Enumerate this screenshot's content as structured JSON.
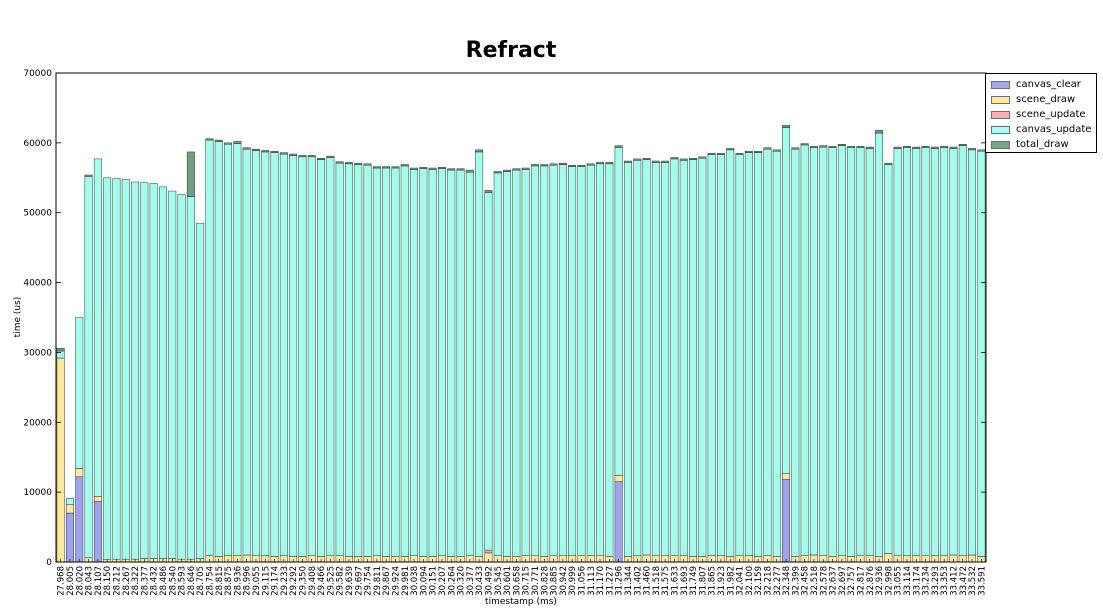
{
  "chart_data": {
    "type": "bar",
    "stacked": true,
    "title": "Refract",
    "xlabel": "timestamp (ms)",
    "ylabel": "time (us)",
    "ylim": [
      0,
      70000
    ],
    "yticks": [
      "0",
      "10000",
      "20000",
      "30000",
      "40000",
      "50000",
      "60000",
      "70000"
    ],
    "grid": false,
    "legend_position": "top-right",
    "categories": [
      "27.968",
      "28.005",
      "28.020",
      "28.043",
      "28.107",
      "28.150",
      "28.212",
      "28.267",
      "28.322",
      "28.377",
      "28.432",
      "28.486",
      "28.540",
      "28.593",
      "28.646",
      "28.705",
      "28.754",
      "28.815",
      "28.875",
      "28.936",
      "28.996",
      "29.055",
      "29.115",
      "29.174",
      "29.233",
      "29.292",
      "29.350",
      "29.408",
      "29.466",
      "29.525",
      "29.582",
      "29.639",
      "29.697",
      "29.754",
      "29.811",
      "29.867",
      "29.924",
      "29.981",
      "30.038",
      "30.094",
      "30.151",
      "30.207",
      "30.264",
      "30.320",
      "30.377",
      "30.433",
      "30.492",
      "30.545",
      "30.601",
      "30.658",
      "30.715",
      "30.771",
      "30.828",
      "30.885",
      "30.942",
      "30.999",
      "31.056",
      "31.113",
      "31.170",
      "31.227",
      "31.296",
      "31.344",
      "31.402",
      "31.460",
      "31.518",
      "31.575",
      "31.633",
      "31.693",
      "31.749",
      "31.807",
      "31.865",
      "31.923",
      "31.982",
      "32.041",
      "32.100",
      "32.159",
      "32.218",
      "32.277",
      "32.348",
      "32.399",
      "32.458",
      "32.518",
      "32.578",
      "32.637",
      "32.697",
      "32.757",
      "32.817",
      "32.876",
      "32.936",
      "32.998",
      "33.055",
      "33.114",
      "33.174",
      "33.234",
      "33.293",
      "33.353",
      "33.412",
      "33.472",
      "33.532",
      "33.591"
    ],
    "series": [
      {
        "name": "canvas_clear",
        "color": "#7b86ec",
        "values": [
          0,
          7000,
          12200,
          0,
          8700,
          0,
          0,
          0,
          0,
          0,
          0,
          0,
          0,
          0,
          0,
          0,
          0,
          0,
          0,
          0,
          0,
          0,
          0,
          0,
          0,
          0,
          0,
          0,
          0,
          0,
          0,
          0,
          0,
          0,
          0,
          0,
          0,
          0,
          0,
          0,
          0,
          0,
          0,
          0,
          0,
          0,
          0,
          0,
          0,
          0,
          0,
          0,
          0,
          0,
          0,
          0,
          0,
          0,
          0,
          0,
          11500,
          0,
          0,
          0,
          0,
          0,
          0,
          0,
          0,
          0,
          0,
          0,
          0,
          0,
          0,
          0,
          0,
          0,
          11800,
          0,
          0,
          0,
          0,
          0,
          0,
          0,
          0,
          0,
          0,
          0,
          0,
          0,
          0,
          0,
          0,
          0,
          0,
          0,
          0,
          0
        ]
      },
      {
        "name": "scene_draw",
        "color": "#ffe17a",
        "values": [
          29200,
          1200,
          1200,
          600,
          700,
          400,
          400,
          400,
          400,
          500,
          500,
          500,
          500,
          400,
          400,
          500,
          900,
          800,
          900,
          900,
          1000,
          900,
          900,
          800,
          900,
          800,
          800,
          900,
          800,
          900,
          900,
          800,
          800,
          800,
          900,
          800,
          800,
          800,
          900,
          800,
          800,
          900,
          800,
          800,
          900,
          800,
          1300,
          900,
          800,
          800,
          900,
          900,
          800,
          900,
          900,
          900,
          900,
          900,
          900,
          800,
          900,
          800,
          900,
          1000,
          900,
          900,
          900,
          900,
          800,
          800,
          900,
          900,
          800,
          900,
          900,
          800,
          900,
          800,
          900,
          800,
          900,
          1000,
          900,
          800,
          900,
          800,
          900,
          900,
          800,
          1200,
          900,
          900,
          900,
          900,
          900,
          900,
          1000,
          900,
          1000,
          800
        ]
      },
      {
        "name": "scene_update",
        "color": "#ff8a9a",
        "values": [
          0,
          0,
          0,
          0,
          0,
          0,
          0,
          0,
          0,
          0,
          0,
          0,
          0,
          0,
          0,
          0,
          0,
          0,
          0,
          0,
          0,
          0,
          0,
          0,
          0,
          0,
          0,
          0,
          0,
          0,
          0,
          0,
          0,
          0,
          0,
          0,
          0,
          0,
          0,
          0,
          0,
          0,
          0,
          0,
          0,
          0,
          400,
          0,
          0,
          0,
          0,
          0,
          0,
          0,
          0,
          0,
          0,
          0,
          0,
          0,
          0,
          0,
          0,
          0,
          0,
          0,
          0,
          0,
          0,
          0,
          0,
          0,
          0,
          0,
          0,
          0,
          0,
          0,
          0,
          0,
          0,
          0,
          0,
          0,
          0,
          0,
          0,
          0,
          0,
          0,
          0,
          0,
          0,
          0,
          0,
          0,
          0,
          0,
          0,
          0
        ]
      },
      {
        "name": "canvas_update",
        "color": "#80ffe6",
        "values": [
          1000,
          900,
          21600,
          54600,
          48300,
          54600,
          54500,
          54400,
          54000,
          53800,
          53700,
          53200,
          52600,
          52200,
          51900,
          48000,
          59500,
          59400,
          58900,
          59000,
          58100,
          58000,
          57800,
          57800,
          57500,
          57400,
          57200,
          57100,
          56800,
          57000,
          56200,
          56200,
          56100,
          56000,
          55500,
          55600,
          55600,
          55900,
          55300,
          55500,
          55400,
          55400,
          55300,
          55300,
          54900,
          57900,
          51200,
          54800,
          55100,
          55300,
          55300,
          55800,
          55900,
          55900,
          56000,
          55700,
          55700,
          55900,
          56100,
          56200,
          46900,
          56400,
          56600,
          56600,
          56300,
          56300,
          56800,
          56600,
          56800,
          57000,
          57400,
          57400,
          58200,
          57400,
          57700,
          57800,
          58200,
          58000,
          49500,
          58300,
          58800,
          58300,
          58500,
          58500,
          58700,
          58500,
          58400,
          58300,
          60600,
          55700,
          58300,
          58400,
          58300,
          58400,
          58300,
          58400,
          58200,
          58700,
          58000,
          58000
        ]
      },
      {
        "name": "total_draw",
        "color": "#3d8055",
        "values": [
          400,
          0,
          0,
          200,
          0,
          0,
          0,
          0,
          0,
          0,
          0,
          0,
          0,
          0,
          6400,
          0,
          200,
          200,
          200,
          300,
          200,
          200,
          200,
          200,
          200,
          200,
          200,
          200,
          200,
          200,
          200,
          200,
          200,
          200,
          200,
          200,
          200,
          200,
          200,
          200,
          200,
          200,
          200,
          200,
          300,
          300,
          300,
          200,
          200,
          200,
          200,
          200,
          200,
          200,
          200,
          200,
          200,
          200,
          200,
          200,
          300,
          200,
          200,
          200,
          200,
          200,
          200,
          200,
          200,
          200,
          200,
          200,
          200,
          200,
          200,
          200,
          200,
          200,
          300,
          200,
          200,
          200,
          200,
          200,
          200,
          200,
          200,
          200,
          400,
          200,
          200,
          200,
          200,
          200,
          200,
          200,
          200,
          200,
          200,
          200
        ]
      }
    ]
  }
}
